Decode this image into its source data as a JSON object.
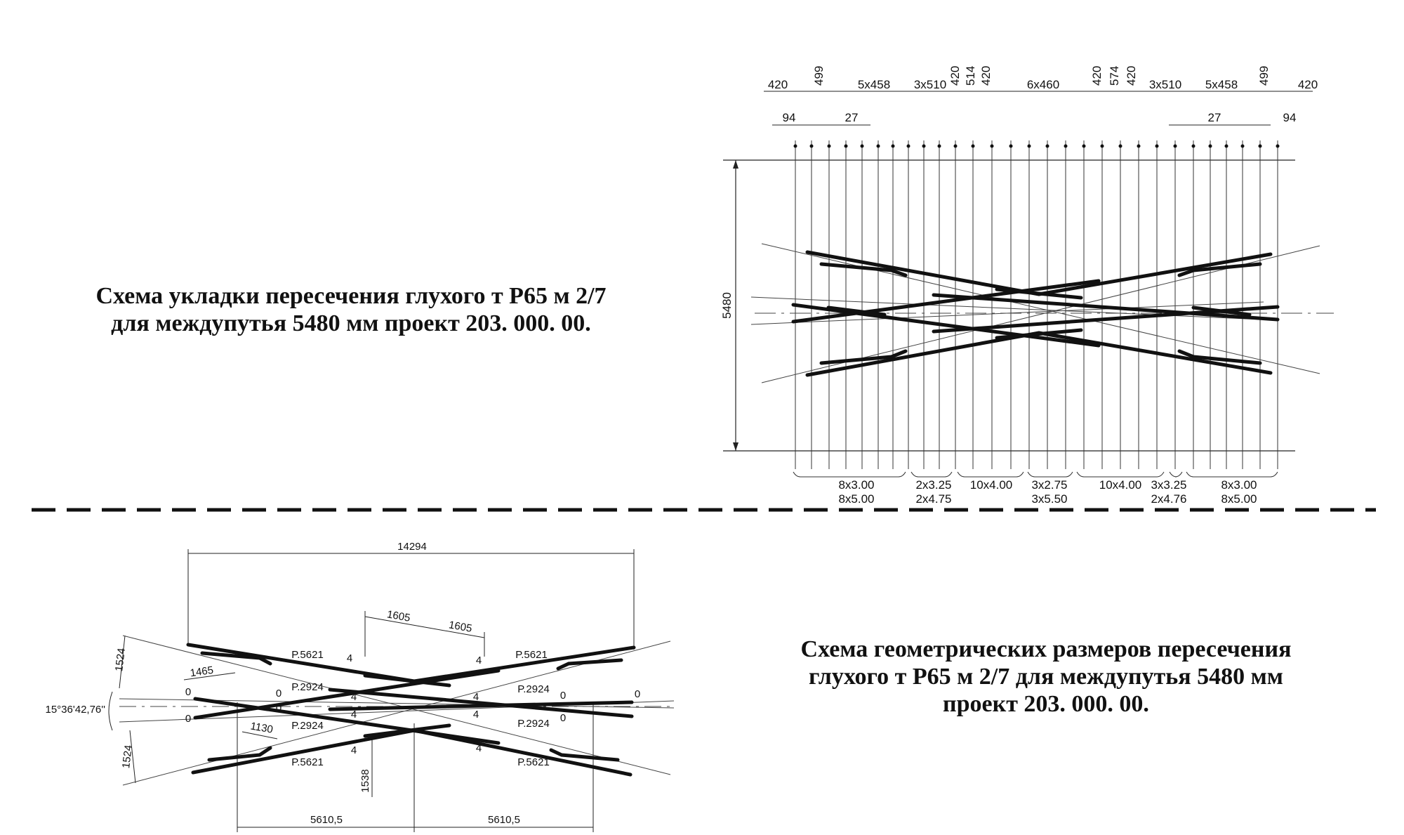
{
  "captions": {
    "top": {
      "line1": "Схема укладки пересечения глухого т Р65 м 2/7",
      "line2": "для междупутья 5480 мм проект 203. 000. 00."
    },
    "bottom": {
      "line1": "Схема геометрических размеров пересечения",
      "line2": "глухого т Р65 м 2/7 для междупутья 5480 мм",
      "line3": "проект 203. 000. 00."
    }
  },
  "top_scheme": {
    "top_dims": [
      "420",
      "499",
      "5x458",
      "3x510",
      "420",
      "514",
      "420",
      "6x460",
      "420",
      "574",
      "420",
      "3x510",
      "5x458",
      "499",
      "420"
    ],
    "sub_dims": [
      "94",
      "27",
      "27",
      "94"
    ],
    "height_dim": "5480",
    "bottom_dims": [
      {
        "a": "8x3.00",
        "b": "8x5.00"
      },
      {
        "a": "2x3.25",
        "b": "2x4.75"
      },
      {
        "a": "10x4.00",
        "b": ""
      },
      {
        "a": "3x2.75",
        "b": "3x5.50"
      },
      {
        "a": "10x4.00",
        "b": ""
      },
      {
        "a": "3x3.25",
        "b": "2x4.76"
      },
      {
        "a": "8x3.00",
        "b": "8x5.00"
      }
    ]
  },
  "bottom_scheme": {
    "overall": "14294",
    "frog_gap_left": "1605",
    "frog_gap_right": "1605",
    "offset_left": "1465",
    "angle": "15°36'42,76''",
    "side_top": "1524",
    "side_bottom": "1524",
    "gap_small": "1130",
    "center_height": "1538",
    "half_left": "5610,5",
    "half_right": "5610,5",
    "rail_labels": {
      "p5621_tl": "P.5621",
      "p5621_tr": "P.5621",
      "p5621_bl": "P.5621",
      "p5621_br": "P.5621",
      "p2924_tl": "P.2924",
      "p2924_tr": "P.2924",
      "p2924_bl": "P.2924",
      "p2924_br": "P.2924"
    },
    "marks": {
      "m4a": "4",
      "m4b": "4",
      "m4c": "4",
      "m4d": "4",
      "m4e": "4",
      "m4f": "4",
      "m4g": "4",
      "m4h": "4",
      "m0a": "0",
      "m0b": "0",
      "m0c": "0",
      "m0d": "0",
      "m0e": "0",
      "m0f": "0",
      "m0g": "0"
    }
  }
}
